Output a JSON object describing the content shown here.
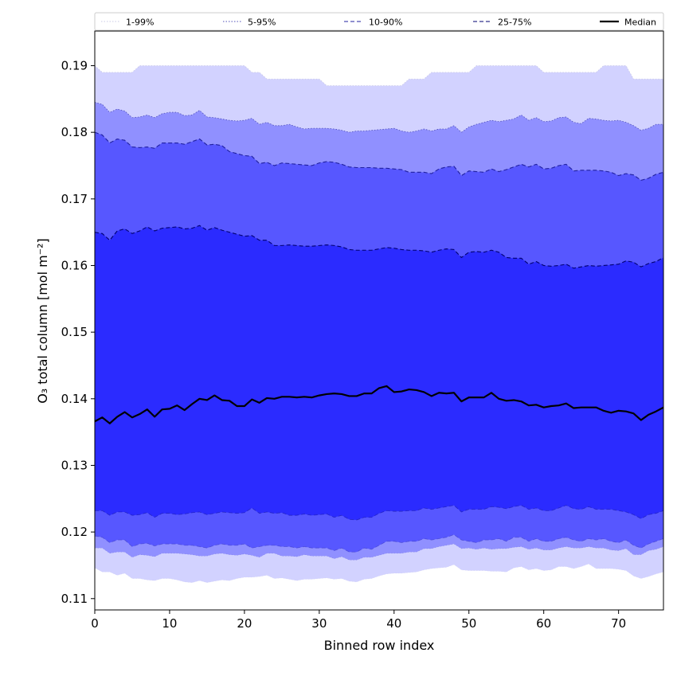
{
  "chart_data": {
    "type": "area",
    "xlabel": "Binned row index",
    "ylabel": "O₃ total column [mol m⁻²]",
    "xlim": [
      0,
      76
    ],
    "ylim": [
      0.1083,
      0.1952
    ],
    "x_ticks": [
      0,
      10,
      20,
      30,
      40,
      50,
      60,
      70
    ],
    "x_tick_labels": [
      "0",
      "10",
      "20",
      "30",
      "40",
      "50",
      "60",
      "70"
    ],
    "y_ticks": [
      0.11,
      0.12,
      0.13,
      0.14,
      0.15,
      0.16,
      0.17,
      0.18,
      0.19
    ],
    "y_tick_labels": [
      "0.11",
      "0.12",
      "0.13",
      "0.14",
      "0.15",
      "0.16",
      "0.17",
      "0.18",
      "0.19"
    ],
    "legend_position": "top, spanning the plot width",
    "x": [
      0,
      1,
      2,
      3,
      4,
      5,
      6,
      7,
      8,
      9,
      10,
      11,
      12,
      13,
      14,
      15,
      16,
      17,
      18,
      19,
      20,
      21,
      22,
      23,
      24,
      25,
      26,
      27,
      28,
      29,
      30,
      31,
      32,
      33,
      34,
      35,
      36,
      37,
      38,
      39,
      40,
      41,
      42,
      43,
      44,
      45,
      46,
      47,
      48,
      49,
      50,
      51,
      52,
      53,
      54,
      55,
      56,
      57,
      58,
      59,
      60,
      61,
      62,
      63,
      64,
      65,
      66,
      67,
      68,
      69,
      70,
      71,
      72,
      73,
      74,
      75,
      76
    ],
    "bands": [
      {
        "name": "1-99%",
        "color": "#d2d2ff",
        "edge_color": "#c8c8e6",
        "line_style": "dotted",
        "upper": [
          0.19,
          0.189,
          0.189,
          0.189,
          0.189,
          0.189,
          0.19,
          0.19,
          0.19,
          0.19,
          0.19,
          0.19,
          0.19,
          0.19,
          0.19,
          0.19,
          0.19,
          0.19,
          0.19,
          0.19,
          0.19,
          0.189,
          0.189,
          0.188,
          0.188,
          0.188,
          0.188,
          0.188,
          0.188,
          0.188,
          0.188,
          0.187,
          0.187,
          0.187,
          0.187,
          0.187,
          0.187,
          0.187,
          0.187,
          0.187,
          0.187,
          0.187,
          0.188,
          0.188,
          0.188,
          0.189,
          0.189,
          0.189,
          0.189,
          0.189,
          0.189,
          0.19,
          0.19,
          0.19,
          0.19,
          0.19,
          0.19,
          0.19,
          0.19,
          0.19,
          0.189,
          0.189,
          0.189,
          0.189,
          0.189,
          0.189,
          0.189,
          0.189,
          0.19,
          0.19,
          0.19,
          0.19,
          0.188,
          0.188,
          0.188,
          0.188,
          0.188
        ],
        "lower": [
          0.1146,
          0.114,
          0.114,
          0.1135,
          0.1138,
          0.113,
          0.113,
          0.1128,
          0.1127,
          0.113,
          0.113,
          0.1128,
          0.1125,
          0.1124,
          0.1127,
          0.1124,
          0.1126,
          0.1128,
          0.1127,
          0.113,
          0.1132,
          0.1132,
          0.1133,
          0.1135,
          0.113,
          0.1131,
          0.1129,
          0.1127,
          0.1129,
          0.1129,
          0.113,
          0.1131,
          0.1129,
          0.113,
          0.1126,
          0.1125,
          0.1129,
          0.113,
          0.1134,
          0.1137,
          0.1138,
          0.1138,
          0.1139,
          0.114,
          0.1143,
          0.1145,
          0.1146,
          0.1147,
          0.1151,
          0.1143,
          0.1142,
          0.1142,
          0.1142,
          0.1141,
          0.1141,
          0.114,
          0.1146,
          0.1148,
          0.1143,
          0.1145,
          0.1142,
          0.1143,
          0.1148,
          0.1148,
          0.1145,
          0.1148,
          0.1152,
          0.1145,
          0.1145,
          0.1145,
          0.1144,
          0.1142,
          0.1134,
          0.113,
          0.1133,
          0.1137,
          0.114
        ]
      },
      {
        "name": "5-95%",
        "color": "#9090ff",
        "edge_color": "#5050b8",
        "line_style": "dotted",
        "upper": [
          0.1845,
          0.1842,
          0.183,
          0.1835,
          0.1832,
          0.1822,
          0.1823,
          0.1826,
          0.1822,
          0.1828,
          0.183,
          0.183,
          0.1825,
          0.1826,
          0.1833,
          0.1823,
          0.1822,
          0.182,
          0.1818,
          0.1817,
          0.1818,
          0.1821,
          0.1812,
          0.1815,
          0.181,
          0.181,
          0.1812,
          0.1808,
          0.1805,
          0.1806,
          0.1806,
          0.1806,
          0.1805,
          0.1803,
          0.18,
          0.1802,
          0.1802,
          0.1803,
          0.1804,
          0.1805,
          0.1806,
          0.1802,
          0.18,
          0.1802,
          0.1805,
          0.1802,
          0.1805,
          0.1805,
          0.181,
          0.18,
          0.1808,
          0.1812,
          0.1815,
          0.1818,
          0.1816,
          0.1818,
          0.182,
          0.1826,
          0.1818,
          0.1822,
          0.1816,
          0.1817,
          0.1822,
          0.1823,
          0.1815,
          0.1813,
          0.1821,
          0.182,
          0.1818,
          0.1817,
          0.1818,
          0.1815,
          0.181,
          0.1803,
          0.1806,
          0.1812,
          0.1812
        ],
        "lower": [
          0.1176,
          0.1176,
          0.1168,
          0.117,
          0.117,
          0.1162,
          0.1166,
          0.1165,
          0.1163,
          0.1168,
          0.1168,
          0.1168,
          0.1167,
          0.1166,
          0.1164,
          0.1164,
          0.1167,
          0.1168,
          0.1166,
          0.1165,
          0.1167,
          0.1165,
          0.1162,
          0.1168,
          0.1168,
          0.1164,
          0.1164,
          0.1163,
          0.1166,
          0.1164,
          0.1164,
          0.1164,
          0.116,
          0.1163,
          0.1158,
          0.1158,
          0.1162,
          0.1162,
          0.1165,
          0.1168,
          0.1168,
          0.1168,
          0.117,
          0.117,
          0.1175,
          0.1175,
          0.1178,
          0.118,
          0.1182,
          0.1175,
          0.1176,
          0.1174,
          0.1176,
          0.1174,
          0.1175,
          0.1175,
          0.1177,
          0.1178,
          0.1174,
          0.1176,
          0.1173,
          0.1173,
          0.1176,
          0.1178,
          0.1176,
          0.1176,
          0.1178,
          0.1176,
          0.1176,
          0.1173,
          0.1172,
          0.1175,
          0.1166,
          0.1166,
          0.1172,
          0.1174,
          0.1178
        ]
      },
      {
        "name": "10-90%",
        "color": "#5757ff",
        "edge_color": "#2020a0",
        "line_style": "dashed",
        "upper": [
          0.18,
          0.1796,
          0.1784,
          0.179,
          0.1788,
          0.1778,
          0.1777,
          0.1778,
          0.1776,
          0.1784,
          0.1784,
          0.1784,
          0.1782,
          0.1786,
          0.179,
          0.1781,
          0.1782,
          0.178,
          0.1771,
          0.1768,
          0.1765,
          0.1764,
          0.1753,
          0.1755,
          0.175,
          0.1754,
          0.1753,
          0.1752,
          0.1751,
          0.175,
          0.1754,
          0.1756,
          0.1755,
          0.1752,
          0.1748,
          0.1747,
          0.1747,
          0.1747,
          0.1746,
          0.1746,
          0.1745,
          0.1744,
          0.174,
          0.174,
          0.174,
          0.1738,
          0.1745,
          0.1748,
          0.1749,
          0.1735,
          0.1742,
          0.1741,
          0.174,
          0.1745,
          0.1741,
          0.1744,
          0.1748,
          0.1752,
          0.1748,
          0.1752,
          0.1745,
          0.1746,
          0.175,
          0.1752,
          0.1742,
          0.1743,
          0.1743,
          0.1743,
          0.1742,
          0.174,
          0.1735,
          0.1738,
          0.1736,
          0.1728,
          0.1731,
          0.1737,
          0.174
        ],
        "lower": [
          0.1194,
          0.1192,
          0.1184,
          0.1188,
          0.1188,
          0.1178,
          0.1182,
          0.1183,
          0.1179,
          0.1182,
          0.1182,
          0.1182,
          0.118,
          0.118,
          0.1178,
          0.1176,
          0.118,
          0.1182,
          0.118,
          0.118,
          0.1182,
          0.1176,
          0.1178,
          0.118,
          0.118,
          0.1178,
          0.1178,
          0.1176,
          0.1178,
          0.1176,
          0.1176,
          0.1176,
          0.1172,
          0.1176,
          0.117,
          0.117,
          0.1176,
          0.1174,
          0.118,
          0.1186,
          0.1186,
          0.1184,
          0.1186,
          0.1186,
          0.119,
          0.1188,
          0.119,
          0.1192,
          0.1196,
          0.1188,
          0.1186,
          0.1184,
          0.1188,
          0.1188,
          0.119,
          0.1186,
          0.1192,
          0.1192,
          0.1186,
          0.119,
          0.1186,
          0.1186,
          0.119,
          0.1192,
          0.1188,
          0.1186,
          0.119,
          0.1188,
          0.119,
          0.1186,
          0.1184,
          0.1188,
          0.118,
          0.1176,
          0.1182,
          0.1186,
          0.119
        ]
      },
      {
        "name": "25-75%",
        "color": "#2b2bff",
        "edge_color": "#000070",
        "line_style": "dashed",
        "upper": [
          0.165,
          0.1648,
          0.1638,
          0.1652,
          0.1655,
          0.1648,
          0.1652,
          0.1658,
          0.1652,
          0.1656,
          0.1657,
          0.1658,
          0.1655,
          0.1656,
          0.166,
          0.1653,
          0.1657,
          0.1653,
          0.165,
          0.1647,
          0.1644,
          0.1645,
          0.1638,
          0.1638,
          0.163,
          0.163,
          0.1631,
          0.163,
          0.1629,
          0.1629,
          0.163,
          0.1631,
          0.163,
          0.1628,
          0.1624,
          0.1623,
          0.1623,
          0.1623,
          0.1625,
          0.1627,
          0.1626,
          0.1624,
          0.1623,
          0.1623,
          0.1622,
          0.162,
          0.1623,
          0.1625,
          0.1624,
          0.1612,
          0.162,
          0.1621,
          0.162,
          0.1623,
          0.162,
          0.1612,
          0.1611,
          0.1611,
          0.1602,
          0.1606,
          0.16,
          0.1599,
          0.16,
          0.1602,
          0.1596,
          0.1598,
          0.16,
          0.1599,
          0.16,
          0.1601,
          0.1602,
          0.1607,
          0.1605,
          0.1598,
          0.1603,
          0.1606,
          0.1612
        ],
        "lower": [
          0.1232,
          0.1232,
          0.1225,
          0.123,
          0.123,
          0.1225,
          0.1226,
          0.1229,
          0.1222,
          0.1228,
          0.1228,
          0.1226,
          0.1227,
          0.1229,
          0.123,
          0.1226,
          0.1228,
          0.123,
          0.1229,
          0.1228,
          0.1229,
          0.1236,
          0.1228,
          0.123,
          0.1228,
          0.1229,
          0.1225,
          0.1225,
          0.1227,
          0.1225,
          0.1226,
          0.1227,
          0.1222,
          0.1225,
          0.1219,
          0.1218,
          0.1222,
          0.1222,
          0.1228,
          0.1232,
          0.1231,
          0.1231,
          0.1232,
          0.1232,
          0.1236,
          0.1234,
          0.1236,
          0.1238,
          0.124,
          0.123,
          0.1234,
          0.1234,
          0.1234,
          0.1238,
          0.1237,
          0.1235,
          0.1238,
          0.124,
          0.1234,
          0.1236,
          0.1232,
          0.1232,
          0.1236,
          0.124,
          0.1235,
          0.1234,
          0.1238,
          0.1234,
          0.1234,
          0.1234,
          0.1232,
          0.123,
          0.1226,
          0.122,
          0.1226,
          0.1228,
          0.1232
        ]
      }
    ],
    "series": [
      {
        "name": "Median",
        "color": "#000000",
        "values": [
          0.1366,
          0.1372,
          0.1363,
          0.1373,
          0.138,
          0.1372,
          0.1377,
          0.1384,
          0.1373,
          0.1384,
          0.1385,
          0.139,
          0.1383,
          0.1392,
          0.14,
          0.1398,
          0.1405,
          0.1398,
          0.1397,
          0.1389,
          0.1389,
          0.1399,
          0.1394,
          0.1401,
          0.14,
          0.1403,
          0.1403,
          0.1402,
          0.1403,
          0.1402,
          0.1405,
          0.1407,
          0.1408,
          0.1407,
          0.1404,
          0.1404,
          0.1408,
          0.1408,
          0.1416,
          0.1419,
          0.141,
          0.1411,
          0.1414,
          0.1413,
          0.141,
          0.1404,
          0.1409,
          0.1408,
          0.1409,
          0.1396,
          0.1402,
          0.1402,
          0.1402,
          0.1409,
          0.14,
          0.1397,
          0.1398,
          0.1396,
          0.139,
          0.1391,
          0.1387,
          0.1389,
          0.139,
          0.1393,
          0.1386,
          0.1387,
          0.1387,
          0.1387,
          0.1382,
          0.1379,
          0.1382,
          0.1381,
          0.1378,
          0.1368,
          0.1376,
          0.1381,
          0.1387
        ]
      }
    ]
  }
}
